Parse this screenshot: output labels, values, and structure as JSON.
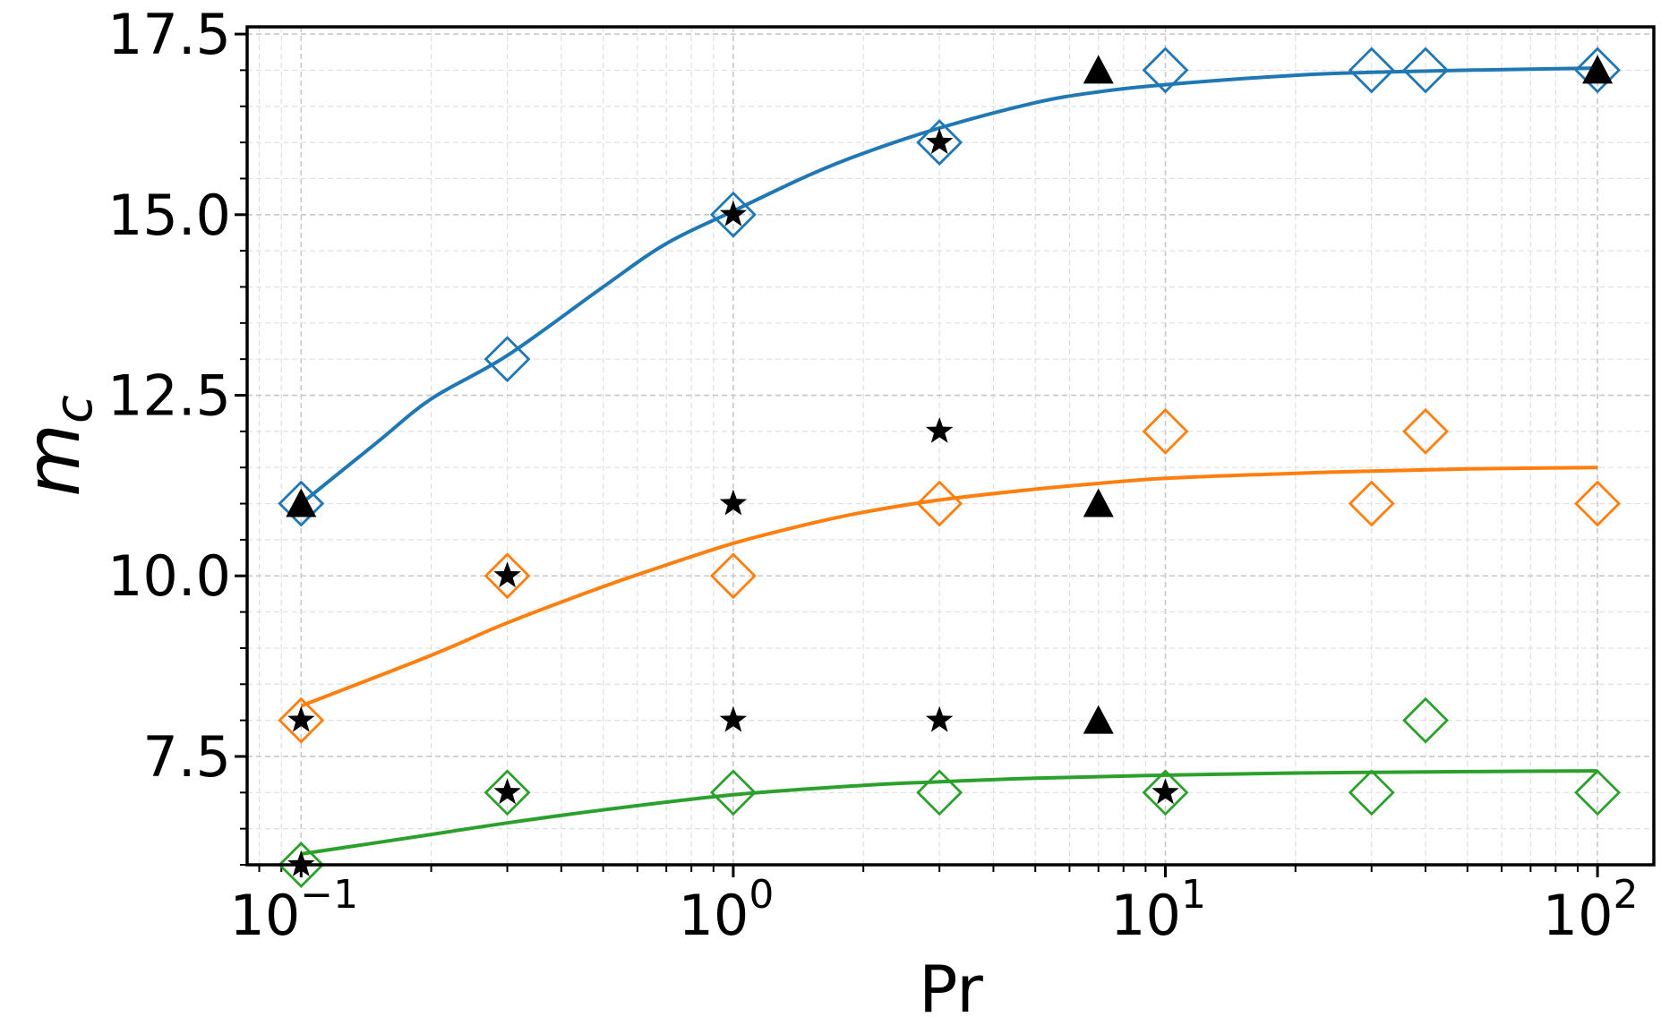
{
  "chart_data": {
    "type": "scatter",
    "title": "",
    "xlabel": "Pr",
    "ylabel": "m",
    "ylabel_subscript": "c",
    "xscale": "log",
    "xlim": [
      0.075,
      135
    ],
    "ylim": [
      6.0,
      17.6
    ],
    "grid": "major and minor, dashed, light gray",
    "xticks": [
      {
        "value": 0.1,
        "base": "10",
        "exp": "−1"
      },
      {
        "value": 1,
        "base": "10",
        "exp": "0"
      },
      {
        "value": 10,
        "base": "10",
        "exp": "1"
      },
      {
        "value": 100,
        "base": "10",
        "exp": "2"
      }
    ],
    "yticks": [
      {
        "value": 7.5,
        "label": "7.5"
      },
      {
        "value": 10.0,
        "label": "10.0"
      },
      {
        "value": 12.5,
        "label": "12.5"
      },
      {
        "value": 15.0,
        "label": "15.0"
      },
      {
        "value": 17.5,
        "label": "17.5"
      }
    ],
    "curves": [
      {
        "name": "fit-blue",
        "color": "#1f77b4",
        "marker": "diamond-open",
        "x": [
          0.1,
          0.3,
          1,
          3,
          10,
          30,
          40,
          100
        ],
        "y": [
          11,
          13,
          15,
          16,
          17,
          17,
          17,
          17
        ],
        "fit": [
          [
            0.1,
            11.0
          ],
          [
            0.15,
            11.85
          ],
          [
            0.2,
            12.45
          ],
          [
            0.3,
            13.05
          ],
          [
            0.5,
            14.0
          ],
          [
            0.7,
            14.6
          ],
          [
            1,
            15.05
          ],
          [
            1.5,
            15.55
          ],
          [
            2,
            15.85
          ],
          [
            3,
            16.2
          ],
          [
            5,
            16.55
          ],
          [
            7,
            16.7
          ],
          [
            10,
            16.8
          ],
          [
            20,
            16.93
          ],
          [
            30,
            16.97
          ],
          [
            50,
            17.0
          ],
          [
            100,
            17.03
          ]
        ]
      },
      {
        "name": "fit-orange",
        "color": "#ff7f0e",
        "marker": "diamond-open",
        "x": [
          0.1,
          0.3,
          1,
          3,
          10,
          30,
          40,
          100
        ],
        "y": [
          8,
          10,
          10,
          11,
          12,
          11,
          12,
          11
        ],
        "fit": [
          [
            0.1,
            8.2
          ],
          [
            0.2,
            8.9
          ],
          [
            0.3,
            9.35
          ],
          [
            0.5,
            9.85
          ],
          [
            0.7,
            10.15
          ],
          [
            1,
            10.45
          ],
          [
            1.5,
            10.72
          ],
          [
            2,
            10.88
          ],
          [
            3,
            11.05
          ],
          [
            5,
            11.2
          ],
          [
            7,
            11.28
          ],
          [
            10,
            11.35
          ],
          [
            20,
            11.42
          ],
          [
            30,
            11.45
          ],
          [
            50,
            11.48
          ],
          [
            100,
            11.5
          ]
        ]
      },
      {
        "name": "fit-green",
        "color": "#2ca02c",
        "marker": "diamond-open",
        "x": [
          0.1,
          0.3,
          1,
          3,
          10,
          30,
          40,
          100
        ],
        "y": [
          6,
          7,
          7,
          7,
          7,
          7,
          8,
          7
        ],
        "fit": [
          [
            0.1,
            6.15
          ],
          [
            0.2,
            6.42
          ],
          [
            0.3,
            6.58
          ],
          [
            0.5,
            6.76
          ],
          [
            1,
            6.97
          ],
          [
            2,
            7.1
          ],
          [
            3,
            7.15
          ],
          [
            5,
            7.2
          ],
          [
            10,
            7.24
          ],
          [
            20,
            7.27
          ],
          [
            30,
            7.28
          ],
          [
            50,
            7.29
          ],
          [
            100,
            7.3
          ]
        ]
      }
    ],
    "stars": [
      {
        "x": 0.1,
        "y": 8
      },
      {
        "x": 0.1,
        "y": 6
      },
      {
        "x": 0.3,
        "y": 10
      },
      {
        "x": 0.3,
        "y": 7
      },
      {
        "x": 1,
        "y": 15
      },
      {
        "x": 1,
        "y": 11
      },
      {
        "x": 1,
        "y": 8
      },
      {
        "x": 3,
        "y": 16
      },
      {
        "x": 3,
        "y": 12
      },
      {
        "x": 3,
        "y": 8
      },
      {
        "x": 10,
        "y": 7
      }
    ],
    "triangles": [
      {
        "x": 0.1,
        "y": 11
      },
      {
        "x": 7,
        "y": 17
      },
      {
        "x": 7,
        "y": 11
      },
      {
        "x": 7,
        "y": 8
      },
      {
        "x": 100,
        "y": 17
      }
    ]
  }
}
